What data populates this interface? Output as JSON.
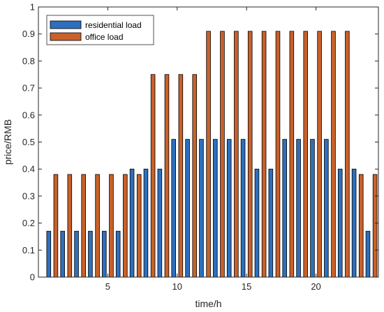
{
  "chart_data": {
    "type": "bar",
    "title": "",
    "xlabel": "time/h",
    "ylabel": "price/RMB",
    "x": [
      1,
      2,
      3,
      4,
      5,
      6,
      7,
      8,
      9,
      10,
      11,
      12,
      13,
      14,
      15,
      16,
      17,
      18,
      19,
      20,
      21,
      22,
      23,
      24
    ],
    "xlim": [
      0,
      24.5
    ],
    "ylim": [
      0,
      1
    ],
    "xticks": [
      5,
      10,
      15,
      20
    ],
    "yticks": [
      0,
      0.1,
      0.2,
      0.3,
      0.4,
      0.5,
      0.6,
      0.7,
      0.8,
      0.9,
      1
    ],
    "xtick_labels": [
      "5",
      "10",
      "15",
      "20"
    ],
    "ytick_labels": [
      "0",
      "0.1",
      "0.2",
      "0.3",
      "0.4",
      "0.5",
      "0.6",
      "0.7",
      "0.8",
      "0.9",
      "1"
    ],
    "grid": false,
    "legend_position": "top-left",
    "series": [
      {
        "name": "residential load",
        "color": "#2e6fbd",
        "values": [
          0.17,
          0.17,
          0.17,
          0.17,
          0.17,
          0.17,
          0.4,
          0.4,
          0.4,
          0.51,
          0.51,
          0.51,
          0.51,
          0.51,
          0.51,
          0.4,
          0.4,
          0.51,
          0.51,
          0.51,
          0.51,
          0.4,
          0.4,
          0.17
        ]
      },
      {
        "name": "office load",
        "color": "#c8612b",
        "values": [
          0.38,
          0.38,
          0.38,
          0.38,
          0.38,
          0.38,
          0.38,
          0.75,
          0.75,
          0.75,
          0.75,
          0.91,
          0.91,
          0.91,
          0.91,
          0.91,
          0.91,
          0.91,
          0.91,
          0.91,
          0.91,
          0.91,
          0.38,
          0.38
        ]
      }
    ]
  }
}
